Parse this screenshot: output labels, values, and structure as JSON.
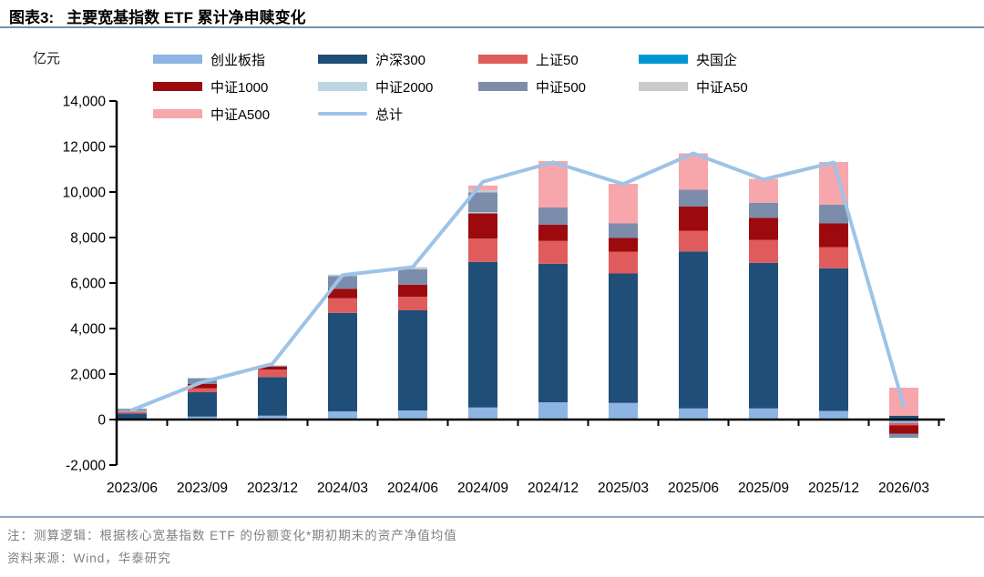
{
  "title": {
    "prefix": "图表3:",
    "text": "主要宽基指数 ETF 累计净申赎变化"
  },
  "unit": "亿元",
  "legend": {
    "items": [
      {
        "label": "创业板指",
        "color": "#8DB4E2",
        "type": "box"
      },
      {
        "label": "沪深300",
        "color": "#1F4E79",
        "type": "box"
      },
      {
        "label": "上证50",
        "color": "#E05C5C",
        "type": "box"
      },
      {
        "label": "央国企",
        "color": "#0096D6",
        "type": "box"
      },
      {
        "label": "中证1000",
        "color": "#9C0A0E",
        "type": "box"
      },
      {
        "label": "中证2000",
        "color": "#BCD5E3",
        "type": "box"
      },
      {
        "label": "中证500",
        "color": "#7C8DAB",
        "type": "box"
      },
      {
        "label": "中证A50",
        "color": "#C9CBCD",
        "type": "box"
      },
      {
        "label": "中证A500",
        "color": "#F7A6AB",
        "type": "box"
      },
      {
        "label": "总计",
        "color": "#9DC3E6",
        "type": "line"
      }
    ]
  },
  "chart_data": {
    "type": "bar",
    "subtype": "stacked-bars-with-total-line",
    "title": "主要宽基指数ETF累计净申赎变化",
    "ylabel": "亿元",
    "ylim": [
      -2000,
      14000
    ],
    "grid": false,
    "legend_position": "top",
    "ytick_labels": [
      "14,000",
      "12,000",
      "10,000",
      "8,000",
      "6,000",
      "4,000",
      "2,000",
      "0",
      "-2,000"
    ],
    "ytick_values": [
      14000,
      12000,
      10000,
      8000,
      6000,
      4000,
      2000,
      0,
      -2000
    ],
    "categories": [
      "2023/06",
      "2023/09",
      "2023/12",
      "2024/03",
      "2024/06",
      "2024/09",
      "2024/12",
      "2025/03",
      "2025/06",
      "2025/09",
      "2025/12",
      "2026/03"
    ],
    "series": [
      {
        "name": "央国企",
        "color": "#0096D6",
        "values": [
          0,
          0,
          0,
          0,
          0,
          50,
          50,
          50,
          50,
          50,
          50,
          0
        ]
      },
      {
        "name": "创业板指",
        "color": "#8DB4E2",
        "values": [
          40,
          130,
          170,
          360,
          400,
          480,
          710,
          680,
          440,
          440,
          330,
          -160
        ]
      },
      {
        "name": "沪深300",
        "color": "#1F4E79",
        "values": [
          230,
          1070,
          1700,
          4330,
          4400,
          6400,
          6090,
          5690,
          6900,
          6400,
          6270,
          170
        ]
      },
      {
        "name": "上证50",
        "color": "#E05C5C",
        "values": [
          80,
          170,
          330,
          640,
          600,
          1025,
          1000,
          960,
          910,
          1000,
          930,
          -90
        ]
      },
      {
        "name": "中证1000",
        "color": "#9C0A0E",
        "values": [
          0,
          190,
          130,
          420,
          530,
          1110,
          710,
          600,
          1060,
          970,
          1040,
          -370
        ]
      },
      {
        "name": "中证2000",
        "color": "#BCD5E3",
        "values": [
          30,
          0,
          0,
          0,
          0,
          50,
          0,
          0,
          0,
          0,
          0,
          0
        ]
      },
      {
        "name": "中证500",
        "color": "#7C8DAB",
        "values": [
          80,
          240,
          40,
          560,
          670,
          870,
          760,
          640,
          740,
          670,
          830,
          -180
        ]
      },
      {
        "name": "中证A50",
        "color": "#C9CBCD",
        "values": [
          30,
          40,
          0,
          60,
          100,
          100,
          0,
          0,
          0,
          0,
          0,
          0
        ]
      },
      {
        "name": "中证A500",
        "color": "#F7A6AB",
        "values": [
          0,
          0,
          0,
          0,
          0,
          200,
          2040,
          1740,
          1600,
          1050,
          1870,
          1230
        ]
      }
    ],
    "total_line": {
      "name": "总计",
      "color": "#9DC3E6",
      "values": [
        420,
        1650,
        2450,
        6350,
        6700,
        10450,
        11310,
        10350,
        11700,
        10550,
        11300,
        600
      ]
    }
  },
  "footer": {
    "note": "注：测算逻辑：根据核心宽基指数 ETF 的份额变化*期初期末的资产净值均值",
    "source": "资料来源：Wind，华泰研究"
  }
}
